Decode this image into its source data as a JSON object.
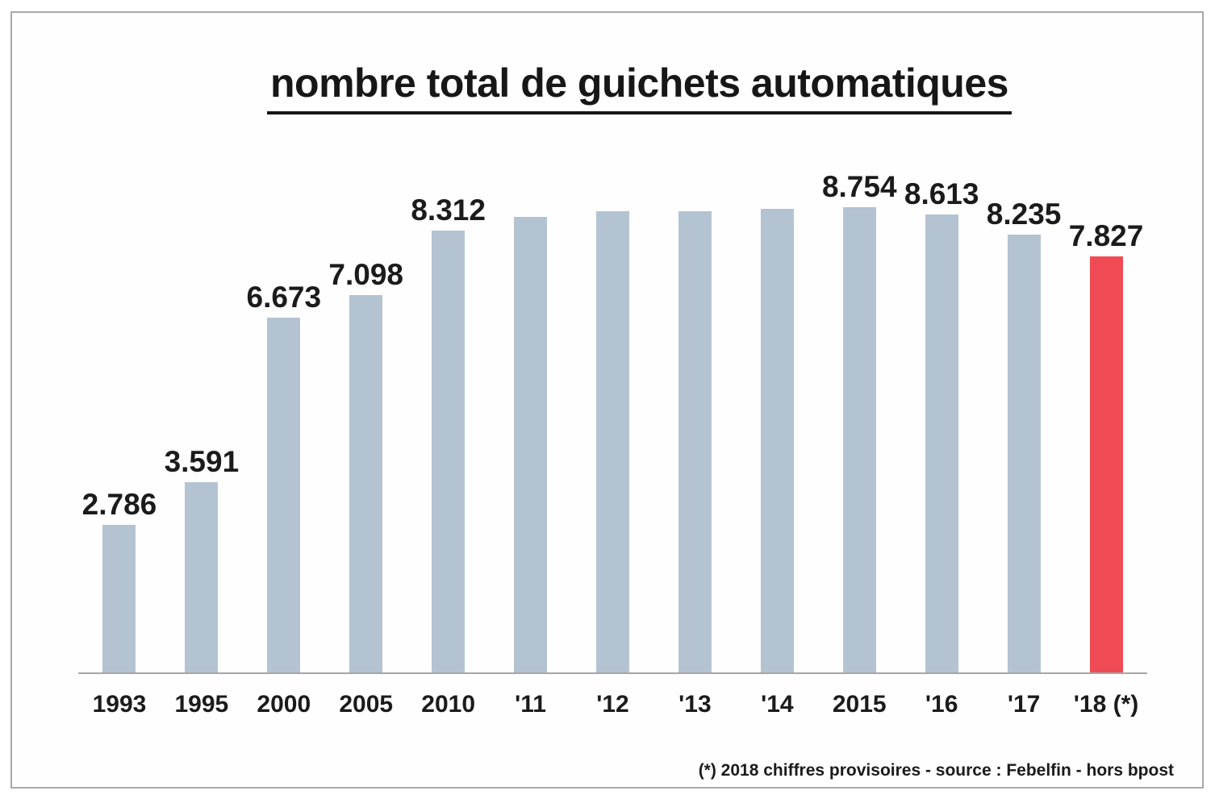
{
  "chart_data": {
    "type": "bar",
    "title": "nombre total de guichets automatiques",
    "categories": [
      "1993",
      "1995",
      "2000",
      "2005",
      "2010",
      "'11",
      "'12",
      "'13",
      "'14",
      "2015",
      "'16",
      "'17",
      "'18 (*)"
    ],
    "values": [
      2786,
      3591,
      6673,
      7098,
      8312,
      8570,
      8675,
      8680,
      8725,
      8754,
      8613,
      8235,
      7827
    ],
    "value_labels": [
      "2.786",
      "3.591",
      "6.673",
      "7.098",
      "8.312",
      "",
      "",
      "",
      "",
      "8.754",
      "8.613",
      "8.235",
      "7.827"
    ],
    "ylim": [
      0,
      9000
    ],
    "grid": false,
    "legend": false,
    "bar_color": "#b4c3d2",
    "highlight_color": "#f04b55",
    "highlight_index": 12,
    "axis_color": "#a6a6a6",
    "footnote": "(*) 2018 chiffres provisoires - source : Febelfin - hors bpost"
  },
  "frame": {
    "border_color": "#a8a8a8"
  }
}
